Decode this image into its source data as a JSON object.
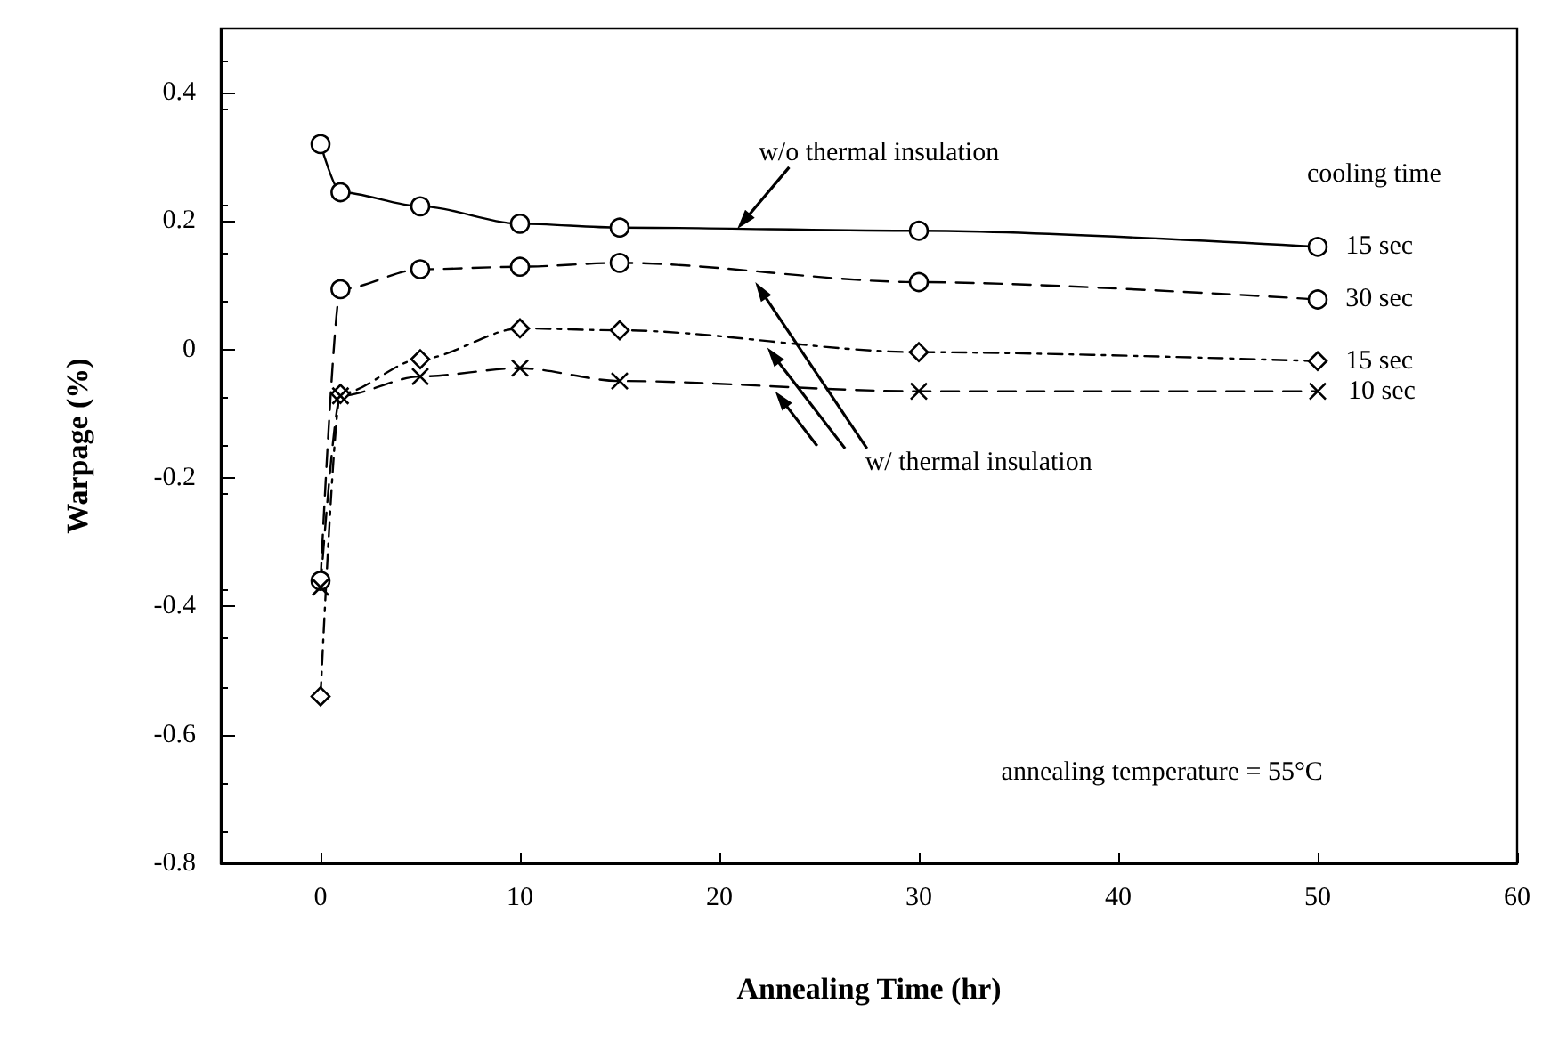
{
  "chart_data": {
    "type": "line",
    "xlabel": "Annealing Time (hr)",
    "ylabel": "Warpage (%)",
    "legend_title": "cooling time",
    "x": [
      0,
      1,
      5,
      10,
      15,
      30,
      50
    ],
    "series": [
      {
        "name": "15 sec",
        "color": "#000000",
        "marker": "circle",
        "line_style": "solid",
        "values": [
          0.32,
          0.245,
          0.223,
          0.196,
          0.19,
          0.185,
          0.16
        ]
      },
      {
        "name": "30 sec",
        "color": "#000000",
        "marker": "circle",
        "line_style": "dashed",
        "values": [
          -0.36,
          0.094,
          0.125,
          0.129,
          0.135,
          0.105,
          0.078
        ]
      },
      {
        "name": "15 sec",
        "color": "#000000",
        "marker": "diamond",
        "line_style": "dotted",
        "values": [
          -0.54,
          -0.069,
          -0.015,
          0.033,
          0.03,
          -0.004,
          -0.018
        ]
      },
      {
        "name": "10 sec",
        "color": "#000000",
        "marker": "cross",
        "line_style": "dashed",
        "values": [
          -0.37,
          -0.072,
          -0.042,
          -0.029,
          -0.049,
          -0.065,
          -0.065
        ]
      }
    ],
    "annotations": [
      {
        "text": "w/o thermal insulation",
        "x": 20.9,
        "y": 0.188
      },
      "w/ thermal insulation",
      "annealing temperature = 55°C"
    ],
    "xlim": [
      -5,
      60
    ],
    "xticks": [
      0,
      10,
      20,
      30,
      40,
      50,
      60
    ],
    "ylim": [
      -0.8,
      0.5
    ],
    "yticks": [
      -0.8,
      -0.6,
      -0.4,
      -0.2,
      0,
      0.2,
      0.4
    ],
    "legend": "right"
  }
}
